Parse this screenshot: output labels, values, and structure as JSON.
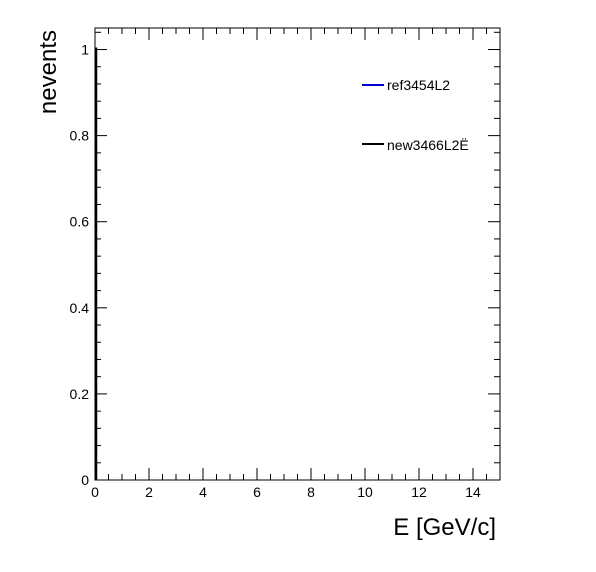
{
  "chart_data": {
    "type": "line",
    "xlabel": "E [GeV/c]",
    "ylabel": "nevents",
    "xlim": [
      0,
      15
    ],
    "ylim": [
      0,
      1.05
    ],
    "x_ticks": [
      "0",
      "2",
      "4",
      "6",
      "8",
      "10",
      "12",
      "14"
    ],
    "y_ticks": [
      "0",
      "0.2",
      "0.4",
      "0.6",
      "0.8",
      "1"
    ],
    "grid": false,
    "legend_position": "top-right",
    "series": [
      {
        "name": "ref3454L2",
        "color": "#0000cc",
        "x": [],
        "y": []
      },
      {
        "name": "new3466L2Ë",
        "color": "#000000",
        "x": [],
        "y": []
      }
    ]
  }
}
